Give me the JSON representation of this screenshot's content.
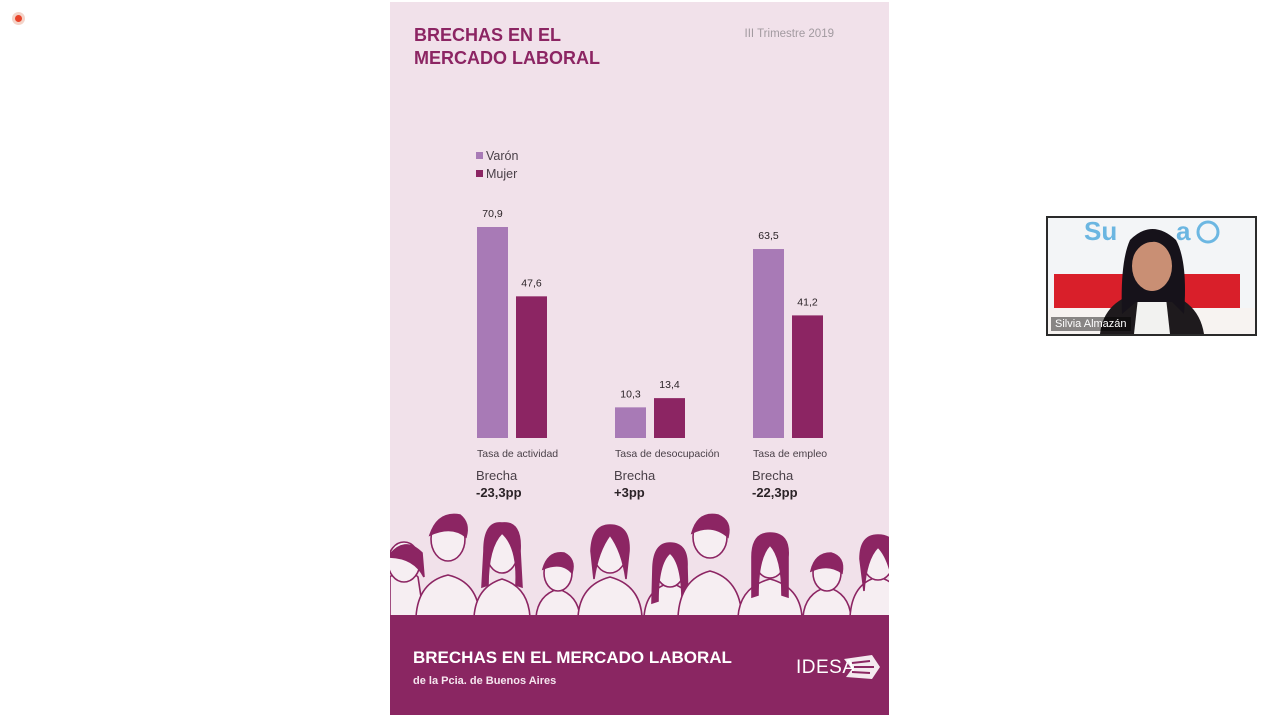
{
  "slide": {
    "title": "BRECHAS EN EL\nMERCADO LABORAL",
    "period": "III Trimestre 2019",
    "footer_title": "BRECHAS EN EL MERCADO LABORAL",
    "footer_subtitle": "de la Pcia. de Buenos Aires",
    "logo": "IDESA"
  },
  "colors": {
    "varon": "#a87ab6",
    "mujer": "#8c2563",
    "background": "#f1e1ea",
    "footer": "#8a2662"
  },
  "chart_data": {
    "type": "bar",
    "categories": [
      "Tasa de actividad",
      "Tasa de desocupación",
      "Tasa de empleo"
    ],
    "series": [
      {
        "name": "Varón",
        "values": [
          70.9,
          10.3,
          63.5
        ]
      },
      {
        "name": "Mujer",
        "values": [
          47.6,
          13.4,
          41.2
        ]
      }
    ],
    "value_labels": [
      [
        "70,9",
        "10,3",
        "63,5"
      ],
      [
        "47,6",
        "13,4",
        "41,2"
      ]
    ],
    "legend_position": "top-left",
    "ylim": [
      0,
      70.9
    ],
    "grid": false,
    "brecha_label": "Brecha",
    "brechas": [
      "-23,3pp",
      "+3pp",
      "-22,3pp"
    ]
  },
  "video_call": {
    "participant_name": "Silvia Almazán"
  }
}
